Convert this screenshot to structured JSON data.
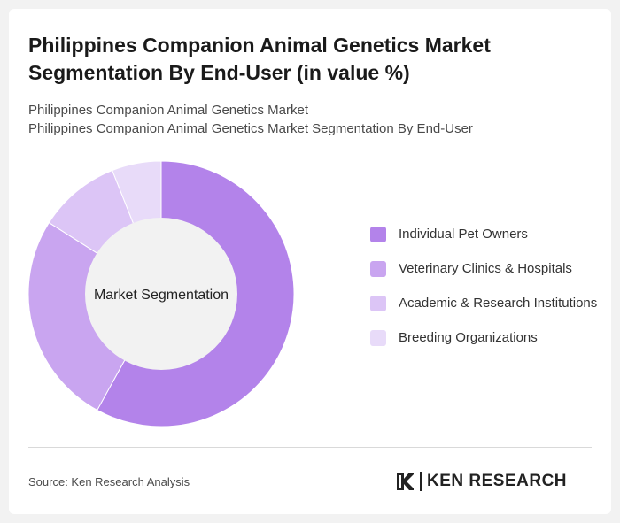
{
  "header": {
    "title": "Philippines Companion Animal Genetics Market Segmentation By End-User (in value %)",
    "subtitle_1": "Philippines Companion Animal Genetics Market",
    "subtitle_2": "Philippines Companion Animal Genetics Market Segmentation By End-User"
  },
  "chart_data": {
    "type": "pie",
    "style": "donut",
    "center_label": "Market Segmentation",
    "legend_position": "right",
    "categories": [
      "Individual Pet Owners",
      "Veterinary Clinics & Hospitals",
      "Academic & Research Institutions",
      "Breeding Organizations"
    ],
    "values": [
      58,
      26,
      10,
      6
    ],
    "colors": [
      "#b383ea",
      "#c9a5f0",
      "#dcc5f6",
      "#e8dbf9"
    ]
  },
  "footer": {
    "source": "Source: Ken Research Analysis",
    "brand": "KEN RESEARCH"
  }
}
